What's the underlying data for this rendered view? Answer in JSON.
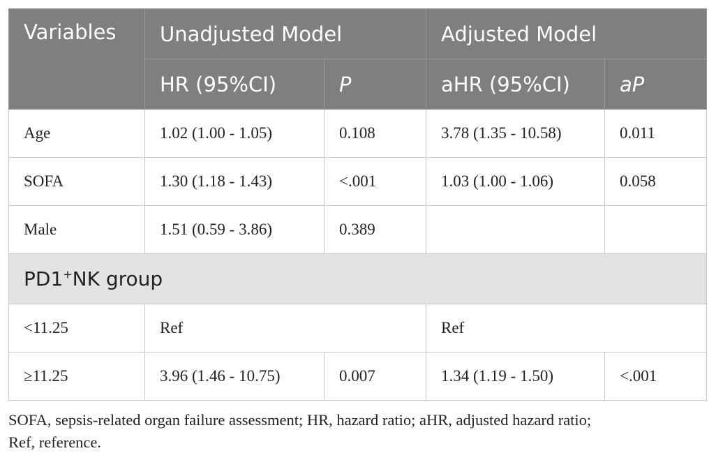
{
  "table": {
    "header": {
      "variables": "Variables",
      "unadjusted": "Unadjusted Model",
      "adjusted": "Adjusted Model",
      "hr": "HR (95%CI)",
      "p": "P",
      "ahr": "aHR (95%CI)",
      "ap": "aP"
    },
    "rows": [
      {
        "label": "Age",
        "hr": "1.02 (1.00 - 1.05)",
        "p": "0.108",
        "ahr": "3.78 (1.35 - 10.58)",
        "ap": "0.011"
      },
      {
        "label": "SOFA",
        "hr": "1.30 (1.18 - 1.43)",
        "p": "<.001",
        "ahr": "1.03 (1.00 - 1.06)",
        "ap": "0.058"
      },
      {
        "label": "Male",
        "hr": "1.51 (0.59 - 3.86)",
        "p": "0.389"
      }
    ],
    "group": {
      "prefix": "PD1",
      "sup": "+",
      "suffix": "NK group"
    },
    "group_rows": [
      {
        "label": "<11.25",
        "hr": "Ref",
        "ahr": "Ref"
      },
      {
        "label": "≥11.25",
        "hr": "3.96 (1.46 - 10.75)",
        "p": "0.007",
        "ahr": "1.34 (1.19 - 1.50)",
        "ap": "<.001"
      }
    ]
  },
  "footnote": {
    "line1": "SOFA, sepsis-related organ failure assessment; HR, hazard ratio; aHR, adjusted hazard ratio;",
    "line2": "Ref, reference."
  }
}
